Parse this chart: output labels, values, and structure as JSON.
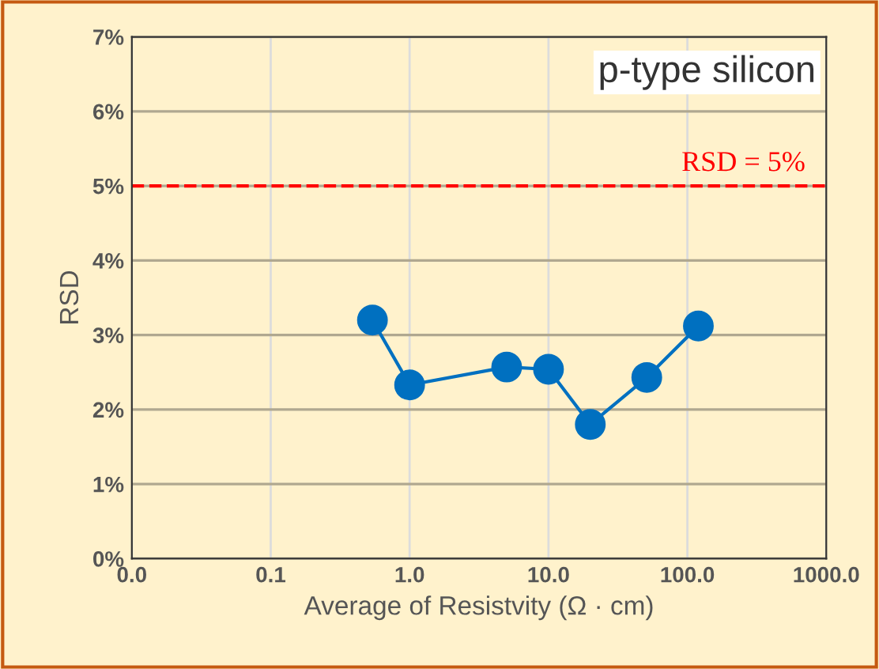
{
  "chart_data": {
    "type": "line",
    "xlabel": "Average of Resistvity (Ω · cm)",
    "ylabel": "RSD",
    "annotations": [
      "p-type silicon"
    ],
    "x": [
      0.54,
      1.0,
      5,
      10,
      20,
      51,
      120
    ],
    "series": [
      {
        "color": "#0070c0",
        "values": [
          3.2,
          2.33,
          2.57,
          2.54,
          1.8,
          2.43,
          3.12
        ]
      }
    ],
    "log": "x",
    "xlim": [
      0.01,
      1000
    ],
    "xticks": [
      {
        "value": 0.01,
        "label": "0.0"
      },
      {
        "value": 0.1,
        "label": "0.1"
      },
      {
        "value": 1,
        "label": "1.0"
      },
      {
        "value": 10,
        "label": "10.0"
      },
      {
        "value": 100,
        "label": "100.0"
      },
      {
        "value": 1000,
        "label": "1000.0"
      }
    ],
    "ylim": [
      0,
      7
    ],
    "yticks": [
      {
        "value": 0,
        "label": "0%"
      },
      {
        "value": 1,
        "label": "1%"
      },
      {
        "value": 2,
        "label": "2%"
      },
      {
        "value": 3,
        "label": "3%"
      },
      {
        "value": 4,
        "label": "4%"
      },
      {
        "value": 5,
        "label": "5%"
      },
      {
        "value": 6,
        "label": "6%"
      },
      {
        "value": 7,
        "label": "7%"
      }
    ],
    "ref_lines": [
      {
        "axis": "y",
        "value": 5,
        "label": "RSD = 5%",
        "color": "#ff0000",
        "line_style": "dashed"
      }
    ],
    "grid": true,
    "marker": "circle",
    "line_style": "solid"
  }
}
